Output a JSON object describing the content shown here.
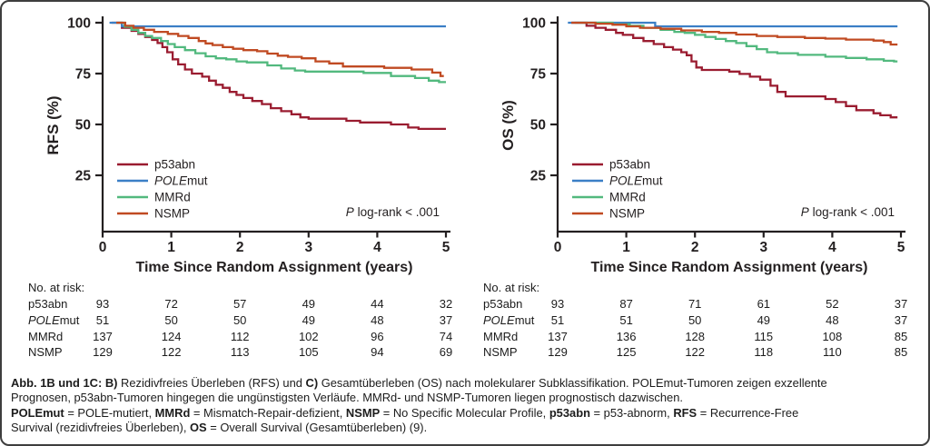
{
  "chart_data": [
    {
      "type": "line",
      "km_step": true,
      "panel": "B",
      "ylabel": "RFS (%)",
      "xlabel": "Time Since Random Assignment (years)",
      "x_ticks": [
        "0",
        "1",
        "2",
        "3",
        "4",
        "5"
      ],
      "y_ticks": [
        100,
        75,
        50,
        25
      ],
      "xlim": [
        0,
        5
      ],
      "ylim": [
        0,
        105
      ],
      "grid": false,
      "legend_position": "lower-left-inside",
      "annotation_parts": [
        {
          "text": "P",
          "italic": true
        },
        {
          "text": "  log-rank < .001"
        }
      ],
      "series": [
        {
          "name": "p53abn",
          "label_parts": [
            {
              "text": "p53abn"
            }
          ],
          "color": "#9a1c30",
          "end_x": 5.0,
          "points": [
            [
              0.13,
              100
            ],
            [
              0.28,
              97.5
            ],
            [
              0.42,
              96
            ],
            [
              0.52,
              94.5
            ],
            [
              0.62,
              93
            ],
            [
              0.72,
              91.5
            ],
            [
              0.8,
              90
            ],
            [
              0.87,
              88
            ],
            [
              0.94,
              85.5
            ],
            [
              1.02,
              82
            ],
            [
              1.1,
              79.5
            ],
            [
              1.2,
              77
            ],
            [
              1.3,
              75
            ],
            [
              1.45,
              73.5
            ],
            [
              1.55,
              71.5
            ],
            [
              1.65,
              69.5
            ],
            [
              1.75,
              68
            ],
            [
              1.85,
              66
            ],
            [
              1.95,
              64.5
            ],
            [
              2.05,
              63
            ],
            [
              2.18,
              61.5
            ],
            [
              2.32,
              60
            ],
            [
              2.45,
              58
            ],
            [
              2.6,
              56.5
            ],
            [
              2.75,
              55
            ],
            [
              2.88,
              53.5
            ],
            [
              3.0,
              52.8
            ],
            [
              3.55,
              51.8
            ],
            [
              3.75,
              51
            ],
            [
              4.2,
              50
            ],
            [
              4.45,
              48.5
            ],
            [
              4.6,
              47.8
            ]
          ]
        },
        {
          "name": "POLEmut",
          "label_parts": [
            {
              "text": "POLE",
              "italic": true
            },
            {
              "text": "mut"
            }
          ],
          "color": "#3b7fc6",
          "end_x": 5.0,
          "points": [
            [
              0.1,
              100
            ],
            [
              0.28,
              98.2
            ]
          ]
        },
        {
          "name": "MMRd",
          "label_parts": [
            {
              "text": "MMRd"
            }
          ],
          "color": "#52b97e",
          "end_x": 5.0,
          "points": [
            [
              0.2,
              100
            ],
            [
              0.32,
              98
            ],
            [
              0.42,
              96.5
            ],
            [
              0.52,
              95
            ],
            [
              0.62,
              93.5
            ],
            [
              0.72,
              92.5
            ],
            [
              0.85,
              91
            ],
            [
              0.95,
              89.5
            ],
            [
              1.05,
              88
            ],
            [
              1.2,
              86.5
            ],
            [
              1.35,
              85
            ],
            [
              1.5,
              83.5
            ],
            [
              1.65,
              82.5
            ],
            [
              1.8,
              82
            ],
            [
              1.95,
              81
            ],
            [
              2.1,
              80.5
            ],
            [
              2.4,
              79
            ],
            [
              2.6,
              77.5
            ],
            [
              2.8,
              76.5
            ],
            [
              2.95,
              76
            ],
            [
              3.8,
              75.3
            ],
            [
              4.2,
              73.8
            ],
            [
              4.55,
              72.8
            ],
            [
              4.75,
              71.5
            ],
            [
              4.9,
              70.8
            ]
          ]
        },
        {
          "name": "NSMP",
          "label_parts": [
            {
              "text": "NSMP"
            }
          ],
          "color": "#c04a22",
          "end_x": 4.97,
          "points": [
            [
              0.2,
              100
            ],
            [
              0.33,
              98.5
            ],
            [
              0.45,
              97.5
            ],
            [
              0.6,
              96.5
            ],
            [
              0.75,
              95.5
            ],
            [
              0.95,
              94.5
            ],
            [
              1.1,
              93.5
            ],
            [
              1.25,
              92.5
            ],
            [
              1.4,
              91
            ],
            [
              1.5,
              89.8
            ],
            [
              1.6,
              89
            ],
            [
              1.75,
              88
            ],
            [
              1.9,
              87.2
            ],
            [
              2.05,
              86.5
            ],
            [
              2.25,
              86
            ],
            [
              2.4,
              84.8
            ],
            [
              2.55,
              83.8
            ],
            [
              2.7,
              83.2
            ],
            [
              2.9,
              82.5
            ],
            [
              3.1,
              81
            ],
            [
              3.3,
              80
            ],
            [
              3.5,
              78.5
            ],
            [
              4.1,
              77.8
            ],
            [
              4.5,
              77
            ],
            [
              4.8,
              75.5
            ],
            [
              4.92,
              73.8
            ]
          ]
        }
      ],
      "risk_table": {
        "title": "No. at risk:",
        "rows": [
          {
            "label_parts": [
              {
                "text": "p53abn"
              }
            ],
            "values": [
              "93",
              "72",
              "57",
              "49",
              "44",
              "32"
            ]
          },
          {
            "label_parts": [
              {
                "text": "POLE",
                "italic": true
              },
              {
                "text": "mut"
              }
            ],
            "values": [
              "51",
              "50",
              "50",
              "49",
              "48",
              "37"
            ]
          },
          {
            "label_parts": [
              {
                "text": "MMRd"
              }
            ],
            "values": [
              "137",
              "124",
              "112",
              "102",
              "96",
              "74"
            ]
          },
          {
            "label_parts": [
              {
                "text": "NSMP"
              }
            ],
            "values": [
              "129",
              "122",
              "113",
              "105",
              "94",
              "69"
            ]
          }
        ]
      }
    },
    {
      "type": "line",
      "km_step": true,
      "panel": "C",
      "ylabel": "OS (%)",
      "xlabel": "Time Since Random Assignment (years)",
      "x_ticks": [
        "0",
        "1",
        "2",
        "3",
        "4",
        "5"
      ],
      "y_ticks": [
        100,
        75,
        50,
        25
      ],
      "xlim": [
        0,
        5
      ],
      "ylim": [
        0,
        105
      ],
      "grid": false,
      "legend_position": "lower-left-inside",
      "annotation_parts": [
        {
          "text": "P",
          "italic": true
        },
        {
          "text": "  log-rank < .001"
        }
      ],
      "series": [
        {
          "name": "p53abn",
          "label_parts": [
            {
              "text": "p53abn"
            }
          ],
          "color": "#9a1c30",
          "end_x": 4.95,
          "points": [
            [
              0.2,
              100
            ],
            [
              0.42,
              98.5
            ],
            [
              0.55,
              97.5
            ],
            [
              0.7,
              96.5
            ],
            [
              0.85,
              95
            ],
            [
              0.95,
              94
            ],
            [
              1.1,
              92.5
            ],
            [
              1.25,
              91
            ],
            [
              1.4,
              89.5
            ],
            [
              1.55,
              88
            ],
            [
              1.68,
              86.8
            ],
            [
              1.8,
              85.5
            ],
            [
              1.88,
              84
            ],
            [
              1.95,
              81
            ],
            [
              2.02,
              78
            ],
            [
              2.1,
              76.8
            ],
            [
              2.5,
              76
            ],
            [
              2.65,
              74.8
            ],
            [
              2.8,
              73.5
            ],
            [
              2.95,
              72
            ],
            [
              3.1,
              69
            ],
            [
              3.2,
              66
            ],
            [
              3.32,
              63.8
            ],
            [
              3.9,
              62.5
            ],
            [
              4.05,
              61
            ],
            [
              4.2,
              59
            ],
            [
              4.35,
              57
            ],
            [
              4.6,
              55.5
            ],
            [
              4.7,
              54.5
            ],
            [
              4.85,
              53.5
            ]
          ]
        },
        {
          "name": "POLEmut",
          "label_parts": [
            {
              "text": "POLE",
              "italic": true
            },
            {
              "text": "mut"
            }
          ],
          "color": "#3b7fc6",
          "end_x": 4.95,
          "points": [
            [
              0.15,
              100
            ],
            [
              1.42,
              98.2
            ]
          ]
        },
        {
          "name": "MMRd",
          "label_parts": [
            {
              "text": "MMRd"
            }
          ],
          "color": "#52b97e",
          "end_x": 4.95,
          "points": [
            [
              0.25,
              100
            ],
            [
              0.8,
              99.2
            ],
            [
              1.05,
              98.5
            ],
            [
              1.25,
              97.5
            ],
            [
              1.5,
              96.5
            ],
            [
              1.7,
              95.5
            ],
            [
              1.85,
              95
            ],
            [
              2.0,
              94
            ],
            [
              2.15,
              93
            ],
            [
              2.3,
              92
            ],
            [
              2.45,
              91
            ],
            [
              2.6,
              90
            ],
            [
              2.75,
              88.5
            ],
            [
              2.9,
              87
            ],
            [
              3.05,
              85.5
            ],
            [
              3.2,
              85
            ],
            [
              3.5,
              84.2
            ],
            [
              3.9,
              83.3
            ],
            [
              4.2,
              82.7
            ],
            [
              4.5,
              82
            ],
            [
              4.75,
              81.3
            ],
            [
              4.9,
              81
            ]
          ]
        },
        {
          "name": "NSMP",
          "label_parts": [
            {
              "text": "NSMP"
            }
          ],
          "color": "#c04a22",
          "end_x": 4.95,
          "points": [
            [
              0.2,
              100
            ],
            [
              0.55,
              99.5
            ],
            [
              0.8,
              99
            ],
            [
              1.0,
              98.2
            ],
            [
              1.2,
              97.5
            ],
            [
              1.5,
              97
            ],
            [
              1.8,
              96.2
            ],
            [
              2.1,
              95.5
            ],
            [
              2.35,
              95
            ],
            [
              2.6,
              94.2
            ],
            [
              2.9,
              93.5
            ],
            [
              3.2,
              93
            ],
            [
              3.6,
              92.5
            ],
            [
              3.9,
              92.2
            ],
            [
              4.2,
              91.7
            ],
            [
              4.6,
              91.2
            ],
            [
              4.75,
              90.5
            ],
            [
              4.85,
              89.3
            ]
          ]
        }
      ],
      "risk_table": {
        "title": "No. at risk:",
        "rows": [
          {
            "label_parts": [
              {
                "text": "p53abn"
              }
            ],
            "values": [
              "93",
              "87",
              "71",
              "61",
              "52",
              "37"
            ]
          },
          {
            "label_parts": [
              {
                "text": "POLE",
                "italic": true
              },
              {
                "text": "mut"
              }
            ],
            "values": [
              "51",
              "51",
              "50",
              "49",
              "48",
              "37"
            ]
          },
          {
            "label_parts": [
              {
                "text": "MMRd"
              }
            ],
            "values": [
              "137",
              "136",
              "128",
              "115",
              "108",
              "85"
            ]
          },
          {
            "label_parts": [
              {
                "text": "NSMP"
              }
            ],
            "values": [
              "129",
              "125",
              "122",
              "118",
              "110",
              "85"
            ]
          }
        ]
      }
    }
  ],
  "caption": {
    "lines": [
      [
        {
          "bold": true,
          "text": "Abb. 1B und 1C: B)"
        },
        {
          "text": " Rezidivfreies Überleben (RFS) und "
        },
        {
          "bold": true,
          "text": "C)"
        },
        {
          "text": " Gesamtüberleben (OS) nach molekularer Subklassifikation. POLEmut-Tumoren zeigen exzellente"
        }
      ],
      [
        {
          "text": "Prognosen, p53abn-Tumoren hingegen die ungünstigsten Verläufe. MMRd- und NSMP-Tumoren liegen prognostisch dazwischen."
        }
      ],
      [
        {
          "bold": true,
          "text": "POLEmut"
        },
        {
          "text": " = POLE-mutiert, "
        },
        {
          "bold": true,
          "text": "MMRd"
        },
        {
          "text": " = Mismatch-Repair-defizient, "
        },
        {
          "bold": true,
          "text": "NSMP"
        },
        {
          "text": " = No Specific Molecular Profile, "
        },
        {
          "bold": true,
          "text": "p53abn"
        },
        {
          "text": " = p53-abnorm, "
        },
        {
          "bold": true,
          "text": "RFS"
        },
        {
          "text": " = Recurrence-Free"
        }
      ],
      [
        {
          "text": "Survival (rezidivfreies Überleben), "
        },
        {
          "bold": true,
          "text": "OS"
        },
        {
          "text": " = Overall Survival (Gesamtüberleben) (9)."
        }
      ]
    ]
  },
  "colors": {
    "p53abn": "#9a1c30",
    "POLEmut": "#3b7fc6",
    "MMRd": "#52b97e",
    "NSMP": "#c04a22",
    "axis": "#231f20",
    "border": "#3e3e3e",
    "text": "#1c1c1c"
  }
}
